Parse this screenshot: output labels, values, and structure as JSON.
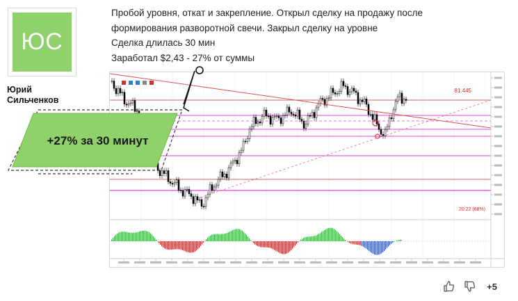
{
  "author": {
    "initials": "ЮС",
    "name_line1": "Юрий",
    "name_line2": "Сильченков"
  },
  "post": {
    "lines": [
      "Пробой уровня, откат и закрепление. Открыл сделку на продажу после",
      "формирования разворотной свечи. Закрыл сделку на уровне",
      "Сделка длилась 30 мин",
      "Заработал $2,43 - 27% от суммы"
    ]
  },
  "banner": {
    "text": "+27% за 30 минут"
  },
  "chart": {
    "price_label": "81.445",
    "timer_label": "20:22 (68%)",
    "colors": {
      "trendline": "#e05050",
      "level_magenta": "#e040e0",
      "level_red": "#c03030",
      "candles": "#000000",
      "hist_green": "#3cb043",
      "hist_red": "#d03030",
      "hist_blue": "#3050d0"
    }
  },
  "reactions": {
    "like_icon": "thumbs-up-icon",
    "dislike_icon": "thumbs-down-icon",
    "score": "+5"
  },
  "colors": {
    "avatar_bg": "#8fd16b",
    "banner_bg": "#8fd16b"
  }
}
